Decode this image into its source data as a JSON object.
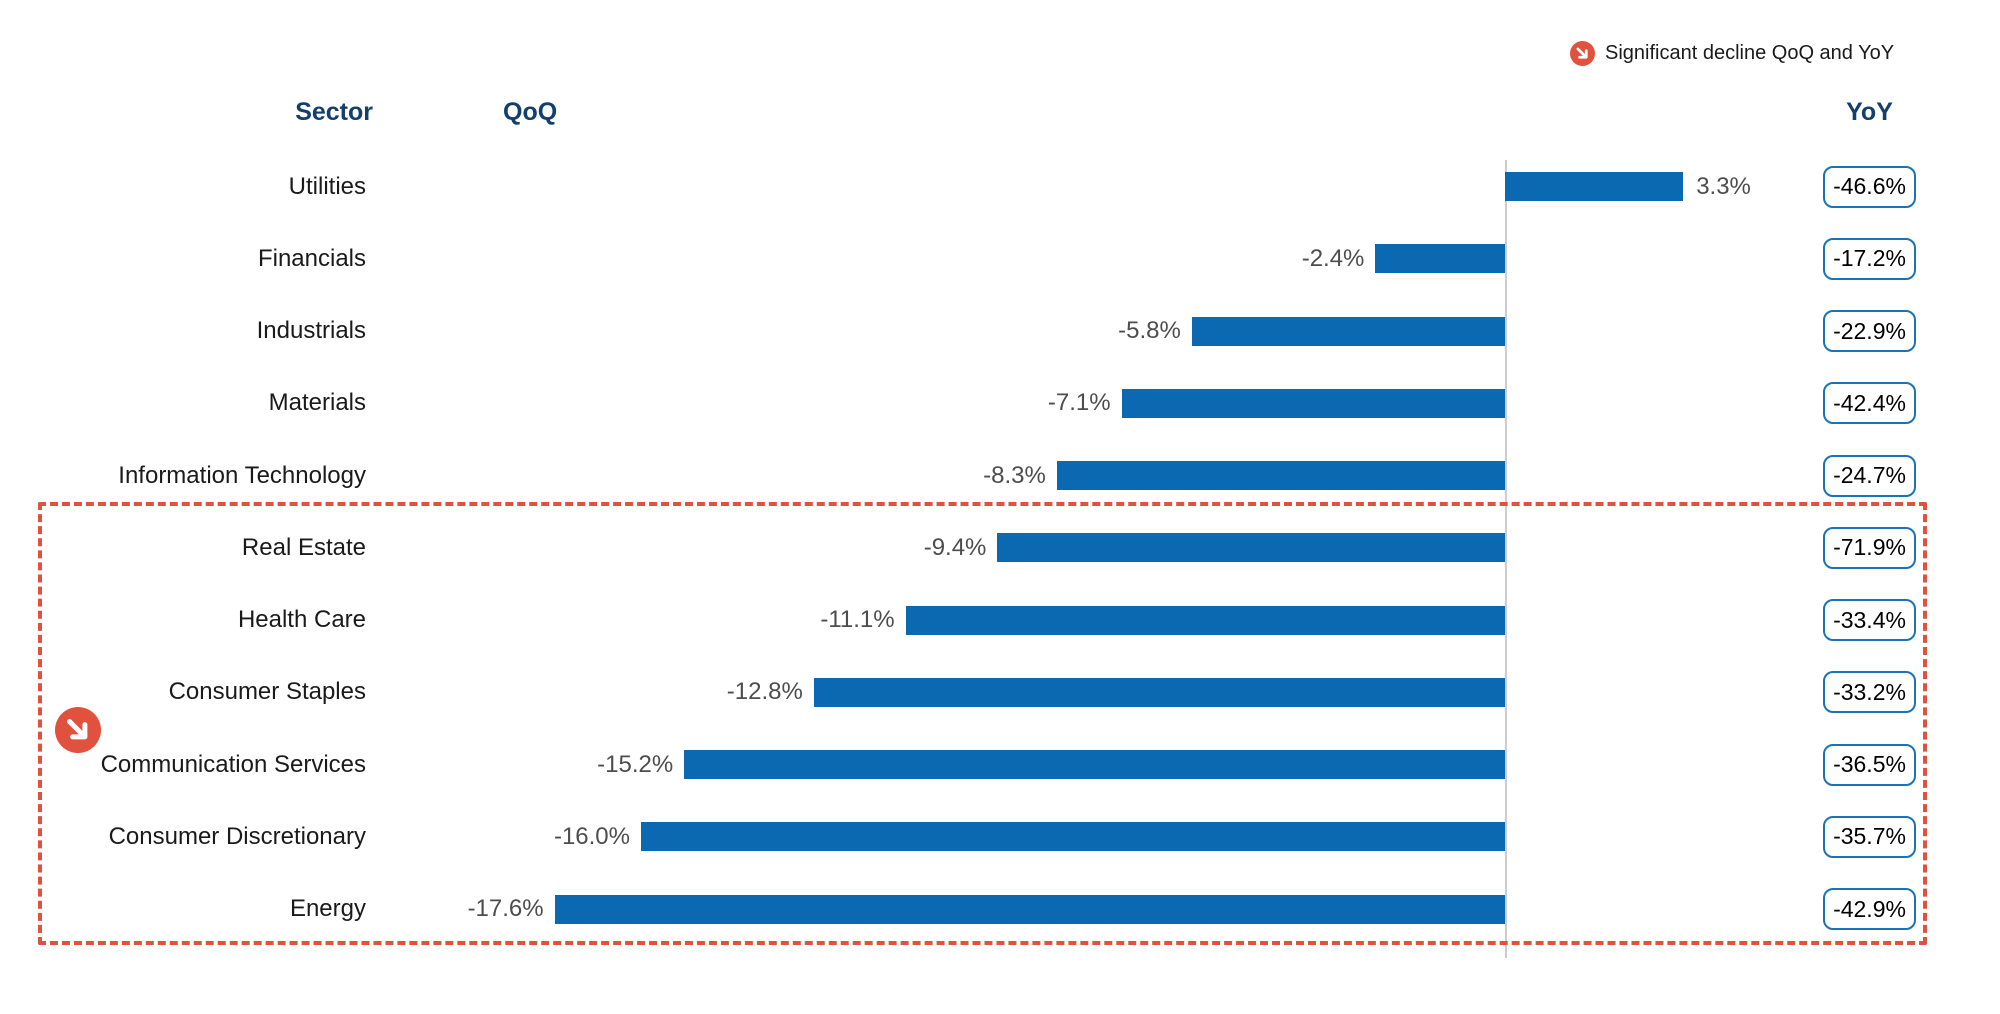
{
  "legend": {
    "label": "Significant decline QoQ and YoY",
    "icon": "decline-arrow-icon"
  },
  "headers": {
    "sector": "Sector",
    "qoq": "QoQ",
    "yoy": "YoY"
  },
  "colors": {
    "bar_blue": "#0a69b0",
    "accent_red": "#e0523e",
    "header_navy": "#123f6c",
    "yoy_box_border": "#1a73b9",
    "qoq_value_text": "#4d4d4d",
    "sector_text": "#1a1a1a",
    "baseline_gray": "#cdcdcd"
  },
  "chart_data": {
    "type": "bar",
    "orientation": "horizontal",
    "units": "percent",
    "columns": [
      "Sector",
      "QoQ",
      "YoY"
    ],
    "legend_note": "Significant decline QoQ and YoY",
    "baseline_value": 0,
    "xlim": [
      -17.6,
      3.3
    ],
    "highlighted_group": [
      "Real Estate",
      "Health Care",
      "Consumer Staples",
      "Communication Services",
      "Consumer Discretionary",
      "Energy"
    ],
    "rows": [
      {
        "sector": "Utilities",
        "qoq": 3.3,
        "qoq_label": "3.3%",
        "yoy": -46.6,
        "yoy_label": "-46.6%",
        "highlighted": false
      },
      {
        "sector": "Financials",
        "qoq": -2.4,
        "qoq_label": "-2.4%",
        "yoy": -17.2,
        "yoy_label": "-17.2%",
        "highlighted": false
      },
      {
        "sector": "Industrials",
        "qoq": -5.8,
        "qoq_label": "-5.8%",
        "yoy": -22.9,
        "yoy_label": "-22.9%",
        "highlighted": false
      },
      {
        "sector": "Materials",
        "qoq": -7.1,
        "qoq_label": "-7.1%",
        "yoy": -42.4,
        "yoy_label": "-42.4%",
        "highlighted": false
      },
      {
        "sector": "Information Technology",
        "qoq": -8.3,
        "qoq_label": "-8.3%",
        "yoy": -24.7,
        "yoy_label": "-24.7%",
        "highlighted": false
      },
      {
        "sector": "Real Estate",
        "qoq": -9.4,
        "qoq_label": "-9.4%",
        "yoy": -71.9,
        "yoy_label": "-71.9%",
        "highlighted": true
      },
      {
        "sector": "Health Care",
        "qoq": -11.1,
        "qoq_label": "-11.1%",
        "yoy": -33.4,
        "yoy_label": "-33.4%",
        "highlighted": true
      },
      {
        "sector": "Consumer Staples",
        "qoq": -12.8,
        "qoq_label": "-12.8%",
        "yoy": -33.2,
        "yoy_label": "-33.2%",
        "highlighted": true
      },
      {
        "sector": "Communication Services",
        "qoq": -15.2,
        "qoq_label": "-15.2%",
        "yoy": -36.5,
        "yoy_label": "-36.5%",
        "highlighted": true
      },
      {
        "sector": "Consumer Discretionary",
        "qoq": -16.0,
        "qoq_label": "-16.0%",
        "yoy": -35.7,
        "yoy_label": "-35.7%",
        "highlighted": true
      },
      {
        "sector": "Energy",
        "qoq": -17.6,
        "qoq_label": "-17.6%",
        "yoy": -42.9,
        "yoy_label": "-42.9%",
        "highlighted": true
      }
    ]
  }
}
